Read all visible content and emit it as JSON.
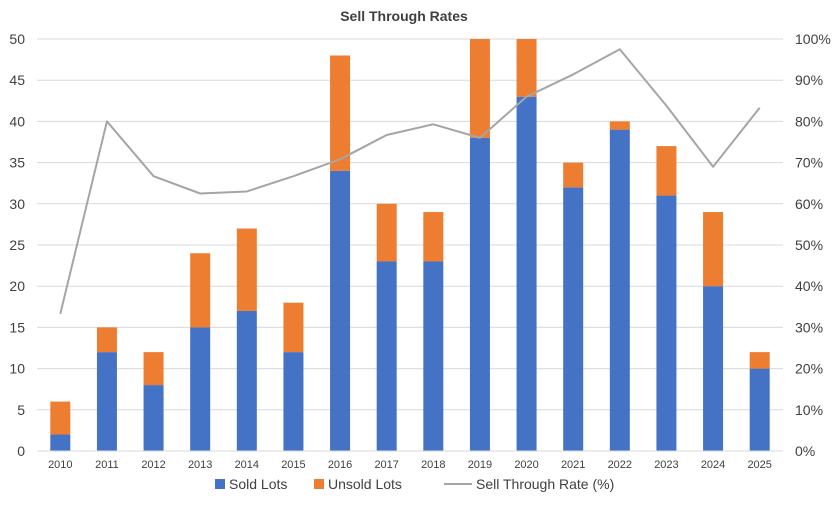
{
  "chart_data": {
    "type": "bar",
    "stacked": true,
    "title": "Sell Through Rates",
    "categories": [
      "2010",
      "2011",
      "2012",
      "2013",
      "2014",
      "2015",
      "2016",
      "2017",
      "2018",
      "2019",
      "2020",
      "2021",
      "2022",
      "2023",
      "2024",
      "2025"
    ],
    "series": [
      {
        "name": "Sold Lots",
        "type": "bar",
        "color": "#4472C4",
        "values": [
          2,
          12,
          8,
          15,
          17,
          12,
          34,
          23,
          23,
          38,
          43,
          32,
          39,
          31,
          20,
          10
        ]
      },
      {
        "name": "Unsold Lots",
        "type": "bar",
        "color": "#ED7D31",
        "values": [
          4,
          3,
          4,
          9,
          10,
          6,
          14,
          7,
          6,
          12,
          7,
          3,
          1,
          6,
          9,
          2
        ]
      },
      {
        "name": "Sell Through Rate (%)",
        "type": "line",
        "axis": "secondary",
        "color": "#A5A5A5",
        "values": [
          33.3,
          80.0,
          66.7,
          62.5,
          63.0,
          66.7,
          70.8,
          76.7,
          79.3,
          76.0,
          86.0,
          91.4,
          97.5,
          83.8,
          69.0,
          83.3
        ]
      }
    ],
    "ylim": [
      0,
      50
    ],
    "yticks": [
      0,
      5,
      10,
      15,
      20,
      25,
      30,
      35,
      40,
      45,
      50
    ],
    "y2lim": [
      0,
      100
    ],
    "y2ticks": [
      "0%",
      "10%",
      "20%",
      "30%",
      "40%",
      "50%",
      "60%",
      "70%",
      "80%",
      "90%",
      "100%"
    ],
    "legend": "bottom"
  }
}
